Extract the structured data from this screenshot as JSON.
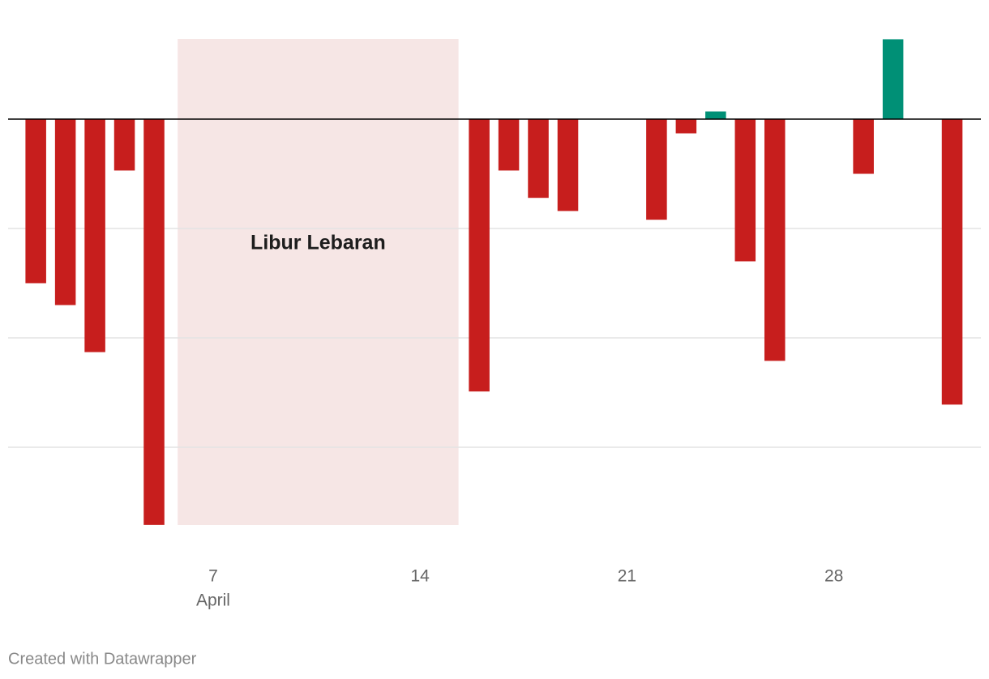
{
  "chart_data": {
    "type": "bar",
    "x": [
      1,
      2,
      3,
      4,
      5,
      16,
      17,
      18,
      19,
      22,
      23,
      24,
      25,
      26,
      29,
      30,
      32
    ],
    "values": [
      -1.5,
      -1.7,
      -2.13,
      -0.47,
      -3.71,
      -2.49,
      -0.47,
      -0.72,
      -0.84,
      -0.92,
      -0.13,
      0.07,
      -1.3,
      -2.21,
      -0.5,
      0.73,
      -2.61
    ],
    "negative_color": "#c71e1d",
    "positive_color": "#009076",
    "xlim": [
      0,
      33
    ],
    "xticks": [
      7,
      14,
      21,
      28
    ],
    "x_sublabel": "April",
    "ylim": [
      -4,
      1
    ],
    "gridlines": [
      -1,
      -2,
      -3
    ],
    "zero_line": 0,
    "highlight": {
      "from": 5.8,
      "to": 15.3,
      "label": "Libur Lebaran",
      "color": "#f6e6e5"
    },
    "credit": "Created with Datawrapper"
  }
}
